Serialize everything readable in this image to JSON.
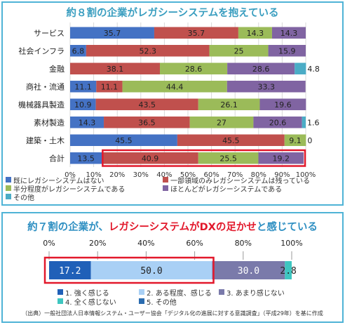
{
  "chart_data": [
    {
      "type": "bar",
      "orientation": "horizontal",
      "stacked": true,
      "title": "約８割の企業がレガシーシステムを抱えている",
      "categories": [
        "サービス",
        "社会インフラ",
        "金融",
        "商社・流通",
        "機械器具製造",
        "素材製造",
        "建築・土木",
        "合計"
      ],
      "x_ticks": [
        "0%",
        "10%",
        "20%",
        "30%",
        "40%",
        "50%",
        "60%",
        "70%",
        "80%",
        "90%",
        "100%"
      ],
      "xlim": [
        0,
        100
      ],
      "series": [
        {
          "name": "既にレガシーシステムはない",
          "color": "#4472c4",
          "values": [
            35.7,
            6.8,
            0,
            11.1,
            10.9,
            14.3,
            45.5,
            13.5
          ],
          "labels": [
            "35.7",
            "6.8",
            "0",
            "11.1",
            "10.9",
            "14.3",
            "45.5",
            "13.5"
          ]
        },
        {
          "name": "一部領域のみレガシーシステムは残っている",
          "color": "#c0504d",
          "values": [
            35.7,
            52.3,
            38.1,
            11.1,
            43.5,
            36.5,
            45.5,
            40.9
          ],
          "labels": [
            "35.7",
            "52.3",
            "38.1",
            "11.1",
            "43.5",
            "36.5",
            "45.5",
            "40.9"
          ]
        },
        {
          "name": "半分程度がレガシーシステムである",
          "color": "#9bbb59",
          "values": [
            14.3,
            25,
            28.6,
            44.4,
            26.1,
            27,
            9.1,
            25.5
          ],
          "labels": [
            "14.3",
            "25",
            "28.6",
            "44.4",
            "26.1",
            "27",
            "9.1",
            "25.5"
          ]
        },
        {
          "name": "ほとんどがレガシーシステムである",
          "color": "#8064a2",
          "values": [
            14.3,
            15.9,
            28.6,
            33.3,
            19.6,
            20.6,
            0,
            19.2
          ],
          "labels": [
            "14.3",
            "15.9",
            "28.6",
            "33.3",
            "19.6",
            "20.6",
            "0",
            "19.2"
          ]
        },
        {
          "name": "その他",
          "color": "#4bacc6",
          "values": [
            0,
            0,
            4.8,
            0,
            0,
            1.6,
            0,
            0
          ],
          "labels": [
            "",
            "",
            "4.8",
            "",
            "",
            "1.6",
            "",
            ""
          ]
        }
      ],
      "grid": true,
      "legend": "bottom",
      "highlight_category": "合計"
    },
    {
      "type": "bar",
      "orientation": "horizontal",
      "stacked": true,
      "title_parts": [
        "約７割の企業が、",
        "レガシーシステムがDXの足かせ",
        "と感じている"
      ],
      "x_ticks": [
        "0%",
        "20%",
        "40%",
        "60%",
        "80%",
        "100%"
      ],
      "xlim": [
        0,
        100
      ],
      "series": [
        {
          "name": "1. 強く感じる",
          "color": "#2060b8",
          "value": 17.2,
          "label": "17.2"
        },
        {
          "name": "2. ある程度、感じる",
          "color": "#a9d0f5",
          "value": 50.0,
          "label": "50.0"
        },
        {
          "name": "3. あまり感じない",
          "color": "#7a7aaa",
          "value": 30.0,
          "label": "30.0"
        },
        {
          "name": "4. 全く感じない",
          "color": "#3ec6c0",
          "value": 2.8,
          "label": "2.8"
        },
        {
          "name": "5. その他",
          "color": "#2b6cb0",
          "value": 0,
          "label": ""
        }
      ],
      "legend": "bottom"
    }
  ],
  "source_note": "（出典）一般社団法人日本情報システム・ユーザー協会「デジタル化の進展に対する意識調査」（平成29年）を基に作成"
}
